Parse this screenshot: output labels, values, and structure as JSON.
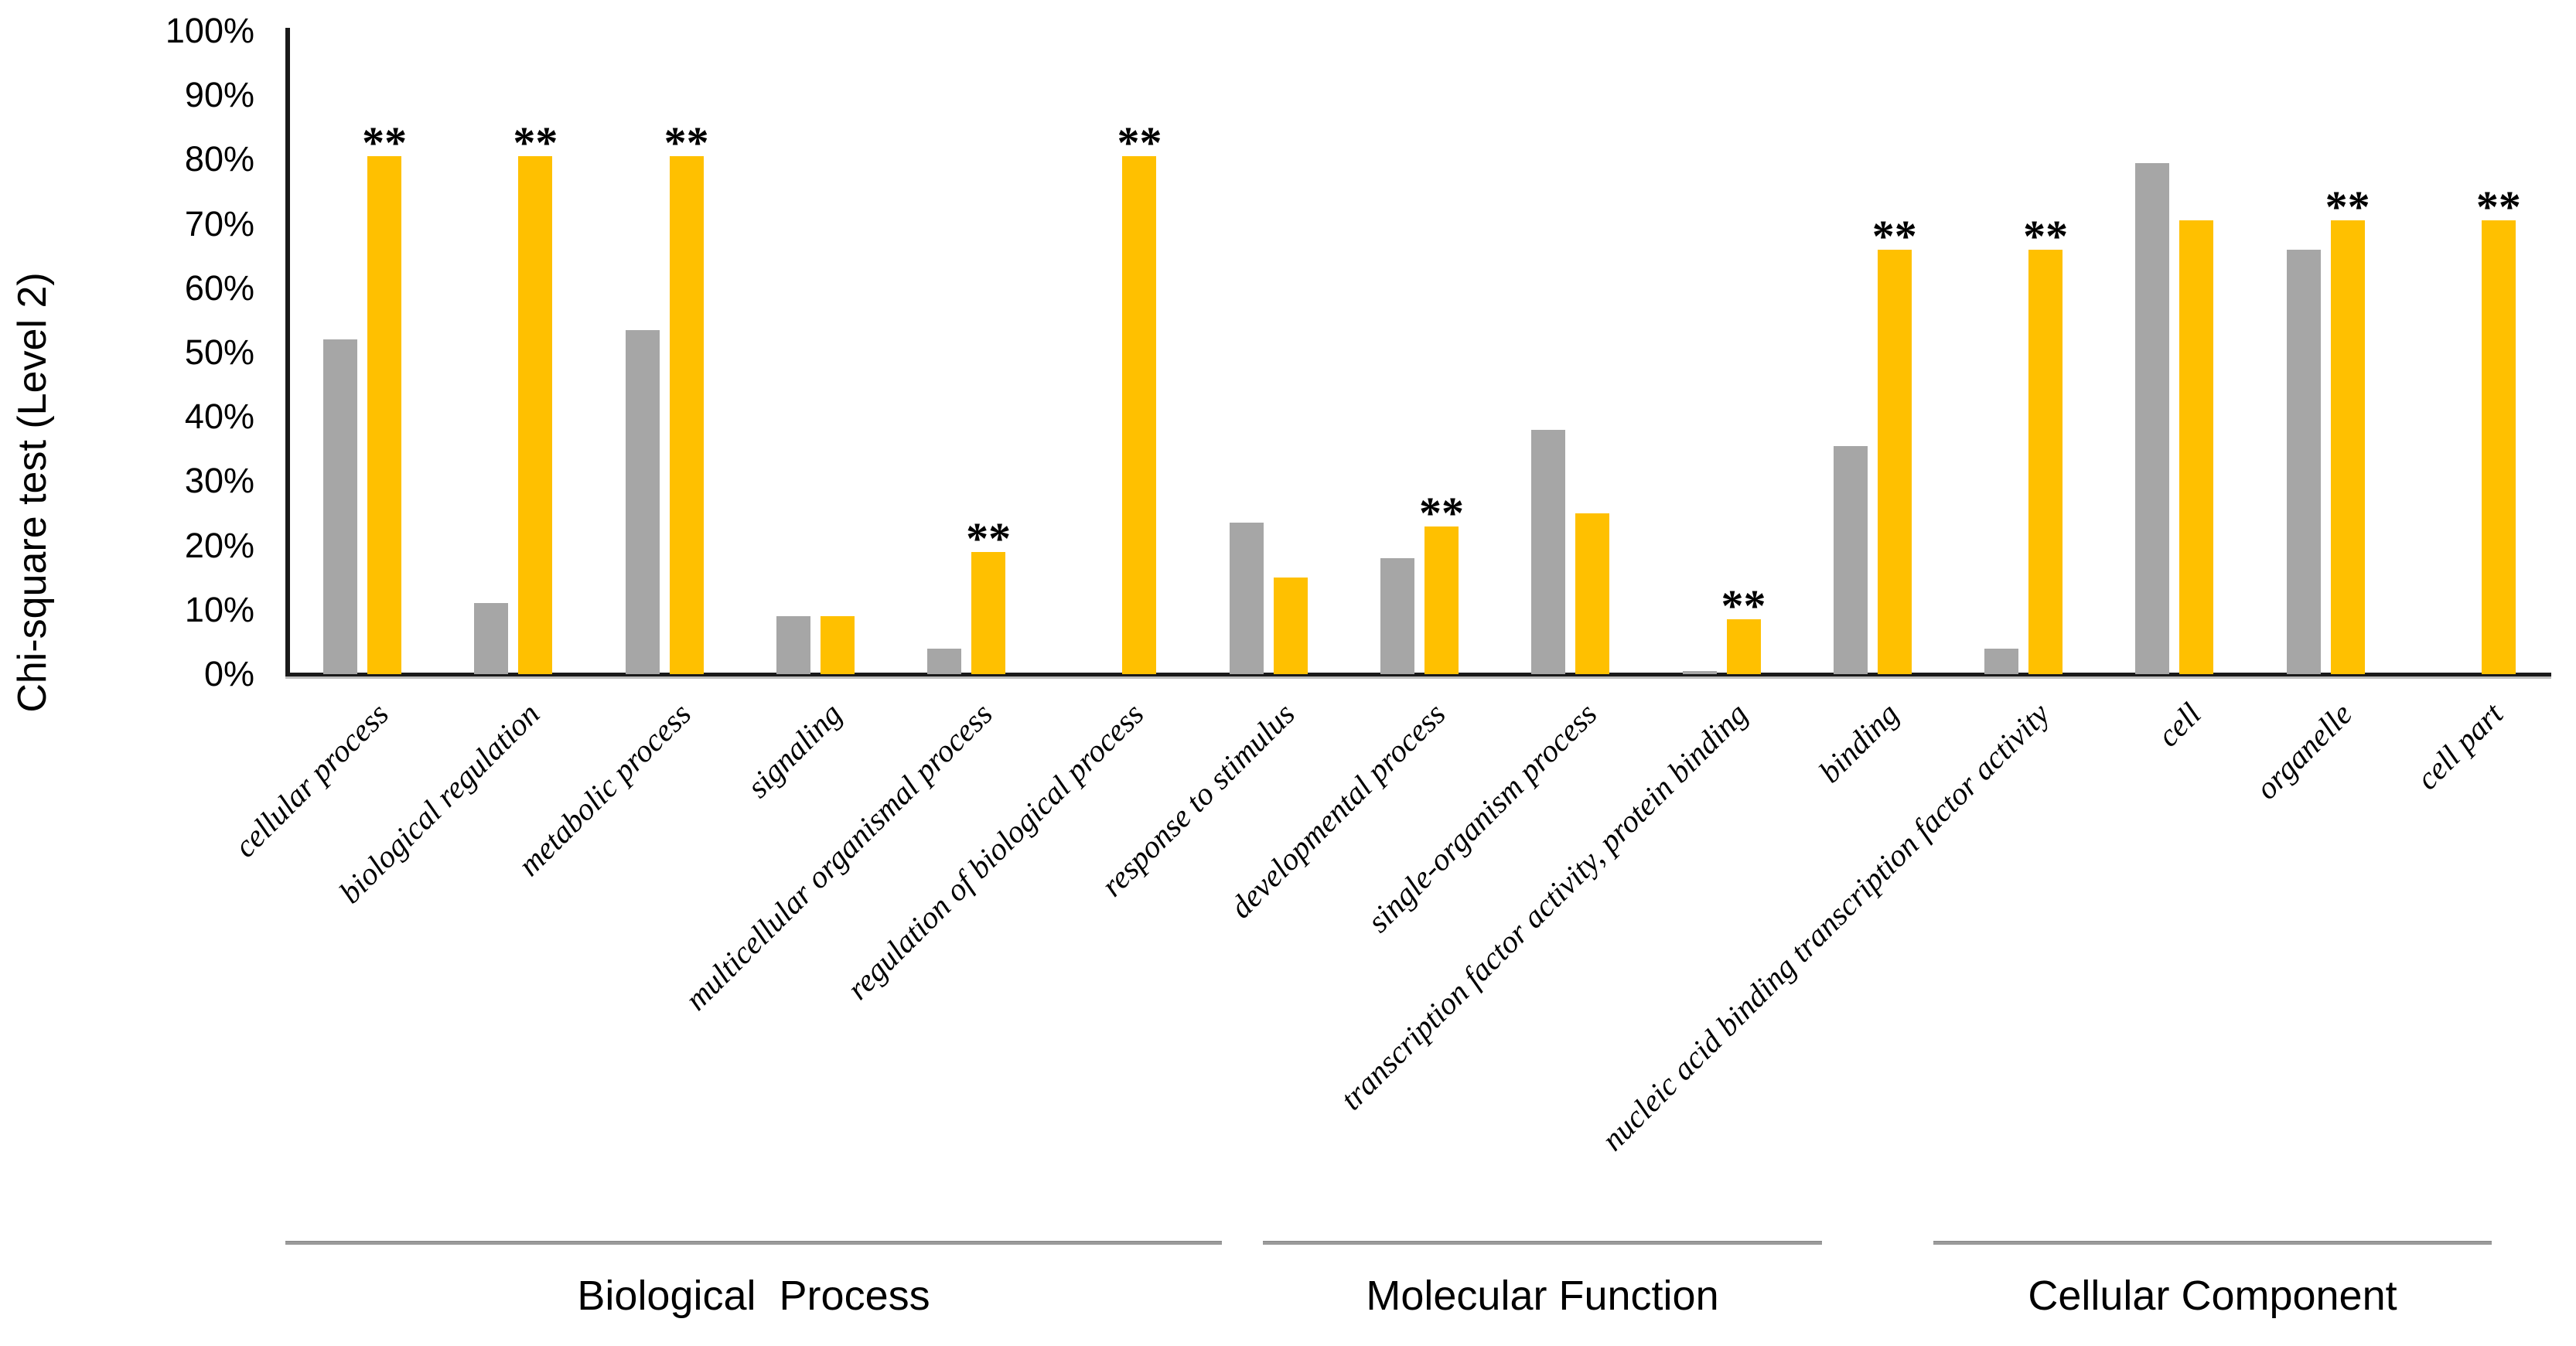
{
  "figure": {
    "y_axis_title": "Chi-square test (Level 2)"
  },
  "chart_data": {
    "type": "bar",
    "title": "",
    "xlabel": "",
    "ylabel": "Chi-square test (Level 2)",
    "ylim": [
      0,
      100
    ],
    "grid": false,
    "legend": "none",
    "y_ticks": [
      "0%",
      "10%",
      "20%",
      "30%",
      "40%",
      "50%",
      "60%",
      "70%",
      "80%",
      "90%",
      "100%"
    ],
    "categories": [
      "cellular process",
      "biological regulation",
      "metabolic process",
      "signaling",
      "multicellular organismal process",
      "regulation of biological process",
      "response to stimulus",
      "developmental process",
      "single-organism process",
      "transcription factor activity, protein binding",
      "binding",
      "nucleic acid binding transcription factor activity",
      "cell",
      "organelle",
      "cell part"
    ],
    "series": [
      {
        "name": "gray",
        "color": "#A6A6A6",
        "values": [
          52,
          11,
          53.5,
          9,
          4,
          0,
          23.5,
          18,
          38,
          0.5,
          35.5,
          4,
          79.5,
          66,
          0
        ]
      },
      {
        "name": "yellow",
        "color": "#FFC000",
        "values": [
          80.5,
          80.5,
          80.5,
          9,
          19,
          80.5,
          15,
          23,
          25,
          8.5,
          66,
          66,
          70.5,
          70.5,
          70.5
        ]
      }
    ],
    "sig_marker": "**",
    "significance": [
      true,
      true,
      true,
      false,
      true,
      true,
      false,
      true,
      false,
      true,
      true,
      true,
      false,
      true,
      true
    ],
    "groups": [
      {
        "label": "Biological  Process",
        "category_range": [
          0,
          8
        ]
      },
      {
        "label": "Molecular Function",
        "category_range": [
          9,
          11
        ]
      },
      {
        "label": "Cellular Component",
        "category_range": [
          12,
          14
        ]
      }
    ]
  }
}
